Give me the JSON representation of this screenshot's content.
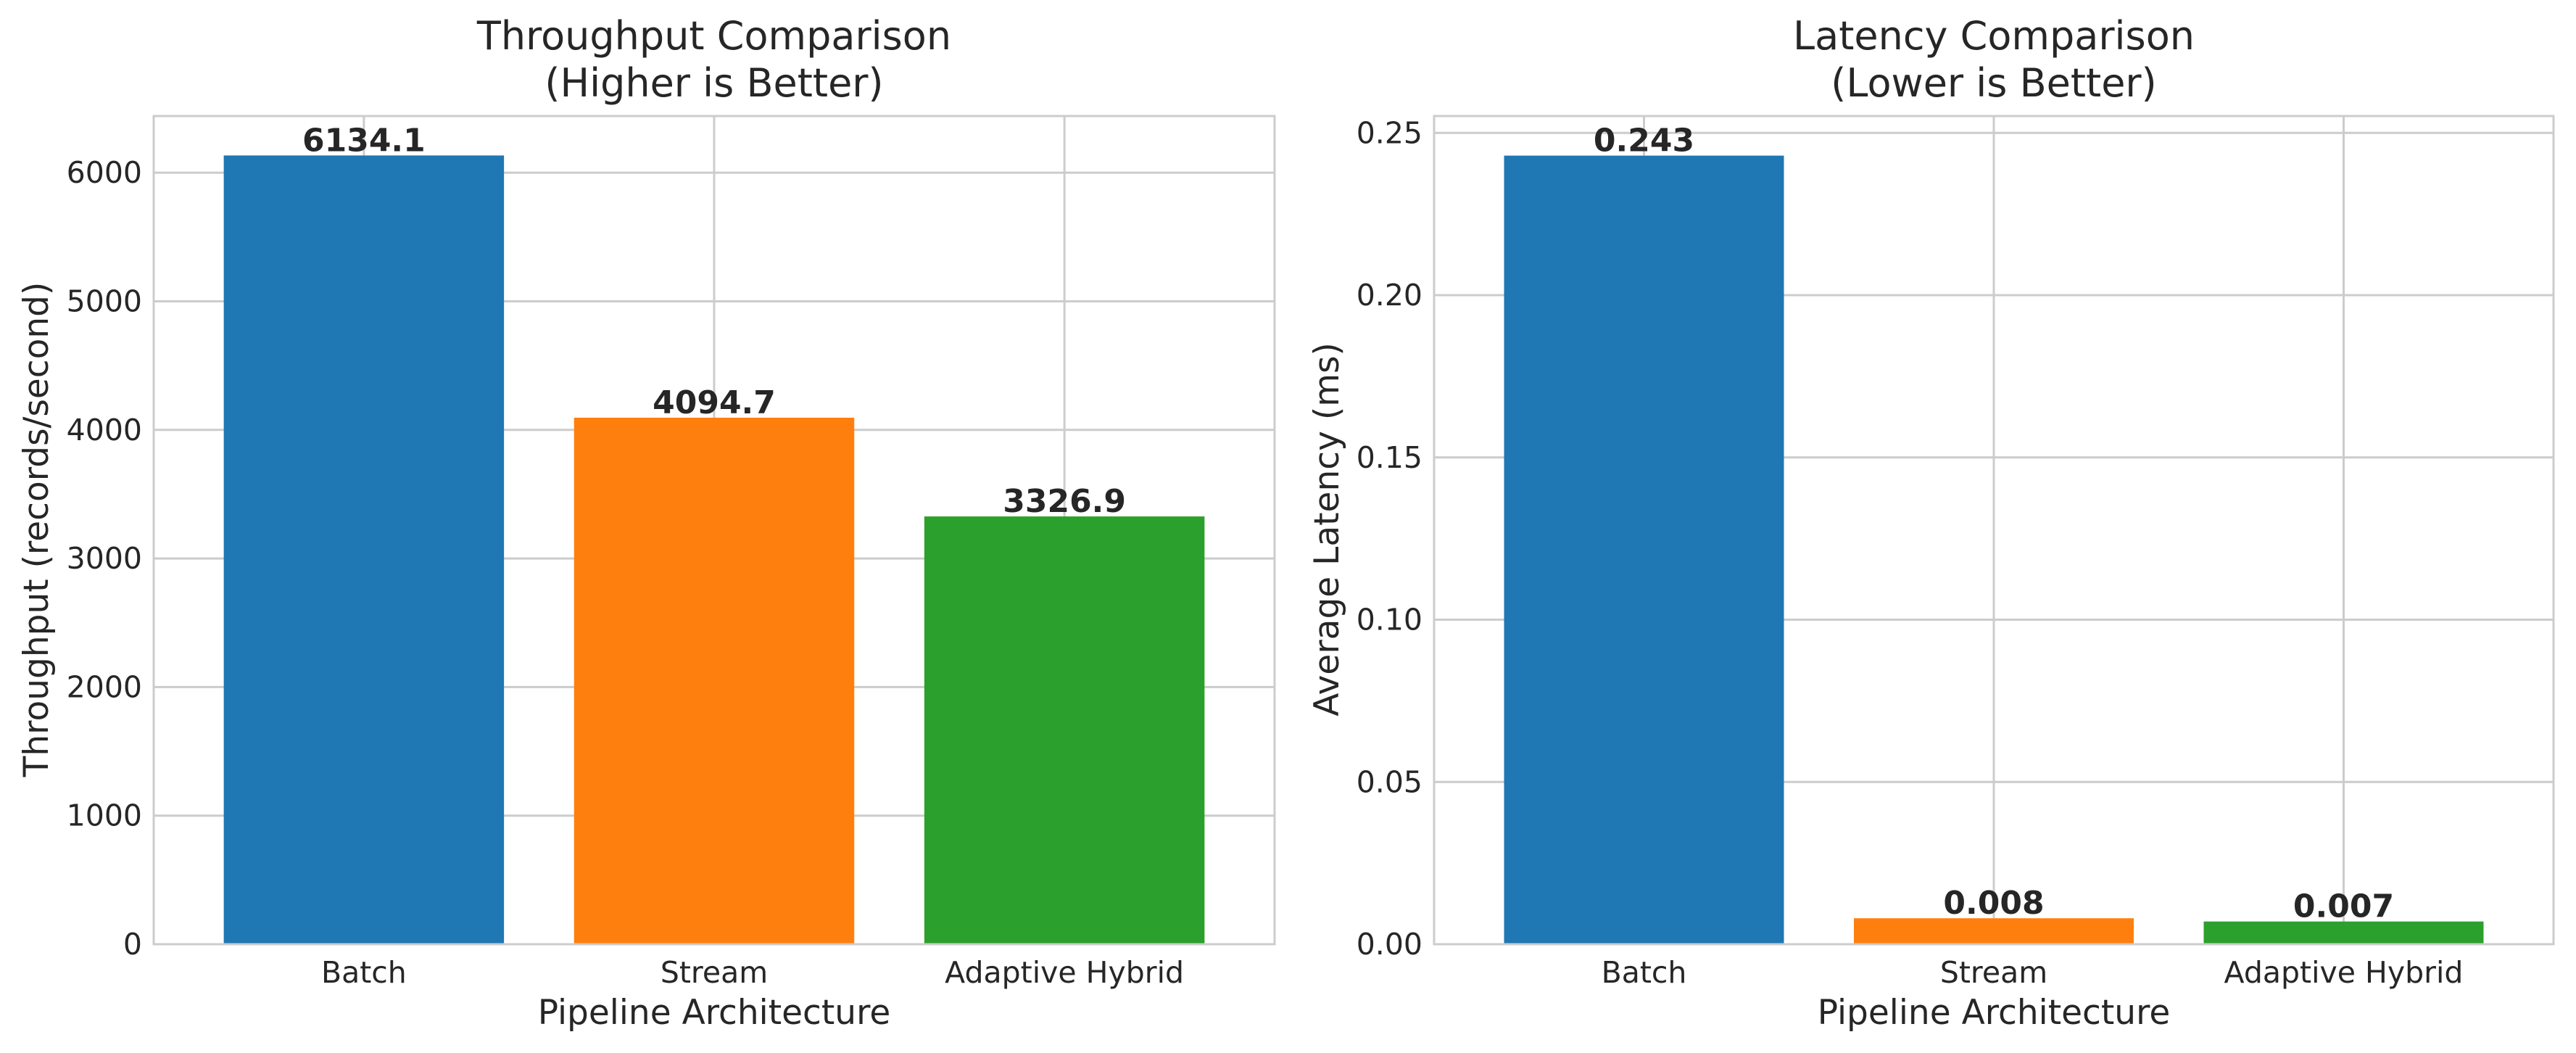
{
  "chart_data": [
    {
      "type": "bar",
      "title_line1": "Throughput Comparison",
      "title_line2": "(Higher is Better)",
      "xlabel": "Pipeline Architecture",
      "ylabel": "Throughput (records/second)",
      "categories": [
        "Batch",
        "Stream",
        "Adaptive Hybrid"
      ],
      "values": [
        6134.1,
        4094.7,
        3326.9
      ],
      "value_labels": [
        "6134.1",
        "4094.7",
        "3326.9"
      ],
      "colors": [
        "#1f77b4",
        "#ff7f0e",
        "#2ca02c"
      ],
      "ylim": [
        0,
        6440.8
      ],
      "yticks": [
        0,
        1000,
        2000,
        3000,
        4000,
        5000,
        6000
      ],
      "ytick_labels": [
        "0",
        "1000",
        "2000",
        "3000",
        "4000",
        "5000",
        "6000"
      ],
      "grid": true
    },
    {
      "type": "bar",
      "title_line1": "Latency Comparison",
      "title_line2": "(Lower is Better)",
      "xlabel": "Pipeline Architecture",
      "ylabel": "Average Latency (ms)",
      "categories": [
        "Batch",
        "Stream",
        "Adaptive Hybrid"
      ],
      "values": [
        0.243,
        0.008,
        0.007
      ],
      "value_labels": [
        "0.243",
        "0.008",
        "0.007"
      ],
      "colors": [
        "#1f77b4",
        "#ff7f0e",
        "#2ca02c"
      ],
      "ylim": [
        0,
        0.2552
      ],
      "yticks": [
        0,
        0.05,
        0.1,
        0.15,
        0.2,
        0.25
      ],
      "ytick_labels": [
        "0.00",
        "0.05",
        "0.10",
        "0.15",
        "0.20",
        "0.25"
      ],
      "grid": true
    }
  ]
}
